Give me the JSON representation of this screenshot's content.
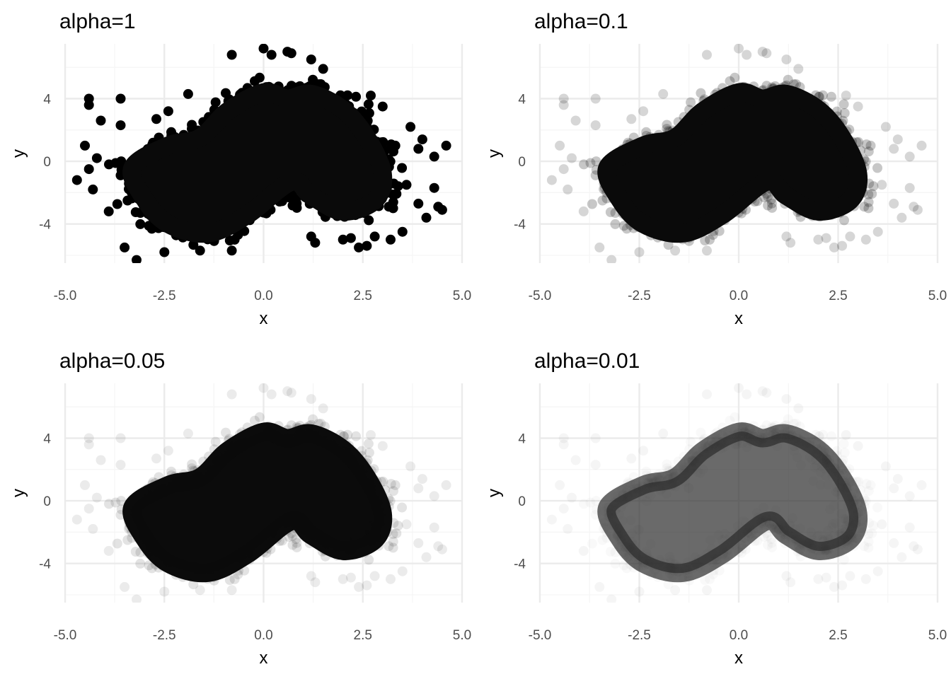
{
  "chart_data": [
    {
      "type": "scatter",
      "title": "alpha=1",
      "alpha": 1,
      "xlabel": "x",
      "ylabel": "y",
      "xlim": [
        -5,
        5
      ],
      "ylim": [
        -6.5,
        7.5
      ],
      "xticks": [
        -5,
        -2.5,
        0,
        2.5,
        5
      ],
      "xtick_labels": [
        "-5.0",
        "-2.5",
        "0.0",
        "2.5",
        "5.0"
      ],
      "yticks": [
        -4,
        0,
        4
      ],
      "ytick_labels": [
        "-4",
        "0",
        "4"
      ],
      "grid": true,
      "point_color": "#000000",
      "density_shape": [
        [
          -3.3,
          -0.4
        ],
        [
          -2.4,
          1.0
        ],
        [
          -1.6,
          1.5
        ],
        [
          -0.9,
          3.2
        ],
        [
          0.0,
          4.4
        ],
        [
          0.6,
          4.0
        ],
        [
          1.2,
          4.3
        ],
        [
          2.0,
          3.3
        ],
        [
          2.6,
          1.5
        ],
        [
          3.0,
          -0.8
        ],
        [
          2.8,
          -2.5
        ],
        [
          2.0,
          -3.2
        ],
        [
          1.2,
          -2.2
        ],
        [
          0.7,
          -1.3
        ],
        [
          -0.4,
          -3.4
        ],
        [
          -1.4,
          -4.6
        ],
        [
          -2.4,
          -4.0
        ],
        [
          -3.0,
          -2.4
        ]
      ],
      "outliers": [
        [
          -4.7,
          -1.2
        ],
        [
          -4.4,
          4.0
        ],
        [
          -4.4,
          3.6
        ],
        [
          -4.5,
          1.0
        ],
        [
          -4.4,
          -0.5
        ],
        [
          -4.3,
          -1.8
        ],
        [
          -4.1,
          2.6
        ],
        [
          -3.6,
          4.0
        ],
        [
          -3.5,
          -5.5
        ],
        [
          -3.2,
          -6.3
        ],
        [
          -2.5,
          -5.8
        ],
        [
          -2.4,
          3.2
        ],
        [
          -1.9,
          4.3
        ],
        [
          -1.6,
          -5.7
        ],
        [
          -0.8,
          6.8
        ],
        [
          -0.8,
          -5.7
        ],
        [
          0.0,
          7.2
        ],
        [
          0.2,
          6.8
        ],
        [
          0.6,
          7.0
        ],
        [
          0.7,
          6.9
        ],
        [
          1.2,
          6.5
        ],
        [
          1.5,
          5.9
        ],
        [
          1.2,
          -4.8
        ],
        [
          1.3,
          -5.2
        ],
        [
          2.0,
          -5.0
        ],
        [
          2.2,
          -4.9
        ],
        [
          2.4,
          -5.5
        ],
        [
          2.6,
          -5.4
        ],
        [
          2.8,
          -4.8
        ],
        [
          3.2,
          -5.0
        ],
        [
          3.0,
          3.5
        ],
        [
          3.5,
          -4.5
        ],
        [
          3.7,
          2.2
        ],
        [
          3.9,
          0.8
        ],
        [
          3.9,
          -2.7
        ],
        [
          4.1,
          -3.6
        ],
        [
          4.3,
          0.3
        ],
        [
          4.3,
          -1.7
        ],
        [
          4.4,
          -2.9
        ],
        [
          4.6,
          1.0
        ],
        [
          4.5,
          -3.1
        ],
        [
          3.6,
          -1.5
        ],
        [
          -3.9,
          -3.2
        ],
        [
          -3.6,
          2.3
        ],
        [
          -4.2,
          0.2
        ],
        [
          2.7,
          4.2
        ],
        [
          -2.7,
          2.7
        ],
        [
          4.0,
          1.4
        ]
      ]
    },
    {
      "type": "scatter",
      "title": "alpha=0.1",
      "alpha": 0.1,
      "xlabel": "x",
      "ylabel": "y",
      "xlim": [
        -5,
        5
      ],
      "ylim": [
        -6.5,
        7.5
      ],
      "xticks": [
        -5,
        -2.5,
        0,
        2.5,
        5
      ],
      "xtick_labels": [
        "-5.0",
        "-2.5",
        "0.0",
        "2.5",
        "5.0"
      ],
      "yticks": [
        -4,
        0,
        4
      ],
      "ytick_labels": [
        "-4",
        "0",
        "4"
      ],
      "grid": true,
      "point_color": "#000000",
      "density_shape": [
        [
          -3.3,
          -0.4
        ],
        [
          -2.4,
          1.0
        ],
        [
          -1.6,
          1.5
        ],
        [
          -0.9,
          3.2
        ],
        [
          0.0,
          4.4
        ],
        [
          0.6,
          4.0
        ],
        [
          1.2,
          4.3
        ],
        [
          2.0,
          3.3
        ],
        [
          2.6,
          1.5
        ],
        [
          3.0,
          -0.8
        ],
        [
          2.8,
          -2.5
        ],
        [
          2.0,
          -3.2
        ],
        [
          1.2,
          -2.2
        ],
        [
          0.7,
          -1.3
        ],
        [
          -0.4,
          -3.4
        ],
        [
          -1.4,
          -4.6
        ],
        [
          -2.4,
          -4.0
        ],
        [
          -3.0,
          -2.4
        ]
      ],
      "outliers": [
        [
          -4.7,
          -1.2
        ],
        [
          -4.4,
          4.0
        ],
        [
          -4.4,
          3.6
        ],
        [
          -4.5,
          1.0
        ],
        [
          -4.4,
          -0.5
        ],
        [
          -4.3,
          -1.8
        ],
        [
          -4.1,
          2.6
        ],
        [
          -3.6,
          4.0
        ],
        [
          -3.5,
          -5.5
        ],
        [
          -3.2,
          -6.3
        ],
        [
          -2.5,
          -5.8
        ],
        [
          -2.4,
          3.2
        ],
        [
          -1.9,
          4.3
        ],
        [
          -1.6,
          -5.7
        ],
        [
          -0.8,
          6.8
        ],
        [
          -0.8,
          -5.7
        ],
        [
          0.0,
          7.2
        ],
        [
          0.2,
          6.8
        ],
        [
          0.6,
          7.0
        ],
        [
          0.7,
          6.9
        ],
        [
          1.2,
          6.5
        ],
        [
          1.5,
          5.9
        ],
        [
          1.2,
          -4.8
        ],
        [
          1.3,
          -5.2
        ],
        [
          2.0,
          -5.0
        ],
        [
          2.2,
          -4.9
        ],
        [
          2.4,
          -5.5
        ],
        [
          2.6,
          -5.4
        ],
        [
          2.8,
          -4.8
        ],
        [
          3.2,
          -5.0
        ],
        [
          3.0,
          3.5
        ],
        [
          3.5,
          -4.5
        ],
        [
          3.7,
          2.2
        ],
        [
          3.9,
          0.8
        ],
        [
          3.9,
          -2.7
        ],
        [
          4.1,
          -3.6
        ],
        [
          4.3,
          0.3
        ],
        [
          4.3,
          -1.7
        ],
        [
          4.4,
          -2.9
        ],
        [
          4.6,
          1.0
        ],
        [
          4.5,
          -3.1
        ],
        [
          3.6,
          -1.5
        ],
        [
          -3.9,
          -3.2
        ],
        [
          -3.6,
          2.3
        ],
        [
          -4.2,
          0.2
        ],
        [
          2.7,
          4.2
        ],
        [
          -2.7,
          2.7
        ],
        [
          4.0,
          1.4
        ]
      ]
    },
    {
      "type": "scatter",
      "title": "alpha=0.05",
      "alpha": 0.05,
      "xlabel": "x",
      "ylabel": "y",
      "xlim": [
        -5,
        5
      ],
      "ylim": [
        -6.5,
        7.5
      ],
      "xticks": [
        -5,
        -2.5,
        0,
        2.5,
        5
      ],
      "xtick_labels": [
        "-5.0",
        "-2.5",
        "0.0",
        "2.5",
        "5.0"
      ],
      "yticks": [
        -4,
        0,
        4
      ],
      "ytick_labels": [
        "-4",
        "0",
        "4"
      ],
      "grid": true,
      "point_color": "#000000",
      "density_shape": [
        [
          -3.3,
          -0.4
        ],
        [
          -2.4,
          1.0
        ],
        [
          -1.6,
          1.5
        ],
        [
          -0.9,
          3.2
        ],
        [
          0.0,
          4.4
        ],
        [
          0.6,
          4.0
        ],
        [
          1.2,
          4.3
        ],
        [
          2.0,
          3.3
        ],
        [
          2.6,
          1.5
        ],
        [
          3.0,
          -0.8
        ],
        [
          2.8,
          -2.5
        ],
        [
          2.0,
          -3.2
        ],
        [
          1.2,
          -2.2
        ],
        [
          0.7,
          -1.3
        ],
        [
          -0.4,
          -3.4
        ],
        [
          -1.4,
          -4.6
        ],
        [
          -2.4,
          -4.0
        ],
        [
          -3.0,
          -2.4
        ]
      ],
      "outliers": [
        [
          -4.7,
          -1.2
        ],
        [
          -4.4,
          4.0
        ],
        [
          -4.4,
          3.6
        ],
        [
          -4.5,
          1.0
        ],
        [
          -4.4,
          -0.5
        ],
        [
          -4.3,
          -1.8
        ],
        [
          -4.1,
          2.6
        ],
        [
          -3.6,
          4.0
        ],
        [
          -3.5,
          -5.5
        ],
        [
          -3.2,
          -6.3
        ],
        [
          -2.5,
          -5.8
        ],
        [
          -2.4,
          3.2
        ],
        [
          -1.9,
          4.3
        ],
        [
          -1.6,
          -5.7
        ],
        [
          -0.8,
          6.8
        ],
        [
          -0.8,
          -5.7
        ],
        [
          0.0,
          7.2
        ],
        [
          0.2,
          6.8
        ],
        [
          0.6,
          7.0
        ],
        [
          0.7,
          6.9
        ],
        [
          1.2,
          6.5
        ],
        [
          1.5,
          5.9
        ],
        [
          1.2,
          -4.8
        ],
        [
          1.3,
          -5.2
        ],
        [
          2.0,
          -5.0
        ],
        [
          2.2,
          -4.9
        ],
        [
          2.4,
          -5.5
        ],
        [
          2.6,
          -5.4
        ],
        [
          2.8,
          -4.8
        ],
        [
          3.2,
          -5.0
        ],
        [
          3.0,
          3.5
        ],
        [
          3.5,
          -4.5
        ],
        [
          3.7,
          2.2
        ],
        [
          3.9,
          0.8
        ],
        [
          3.9,
          -2.7
        ],
        [
          4.1,
          -3.6
        ],
        [
          4.3,
          0.3
        ],
        [
          4.3,
          -1.7
        ],
        [
          4.4,
          -2.9
        ],
        [
          4.6,
          1.0
        ],
        [
          4.5,
          -3.1
        ],
        [
          3.6,
          -1.5
        ],
        [
          -3.9,
          -3.2
        ],
        [
          -3.6,
          2.3
        ],
        [
          -4.2,
          0.2
        ],
        [
          2.7,
          4.2
        ],
        [
          -2.7,
          2.7
        ],
        [
          4.0,
          1.4
        ]
      ]
    },
    {
      "type": "scatter",
      "title": "alpha=0.01",
      "alpha": 0.01,
      "xlabel": "x",
      "ylabel": "y",
      "xlim": [
        -5,
        5
      ],
      "ylim": [
        -6.5,
        7.5
      ],
      "xticks": [
        -5,
        -2.5,
        0,
        2.5,
        5
      ],
      "xtick_labels": [
        "-5.0",
        "-2.5",
        "0.0",
        "2.5",
        "5.0"
      ],
      "yticks": [
        -4,
        0,
        4
      ],
      "ytick_labels": [
        "-4",
        "0",
        "4"
      ],
      "grid": true,
      "point_color": "#000000",
      "density_shape": [
        [
          -3.3,
          -0.4
        ],
        [
          -2.4,
          1.0
        ],
        [
          -1.6,
          1.5
        ],
        [
          -0.9,
          3.2
        ],
        [
          0.0,
          4.4
        ],
        [
          0.6,
          4.0
        ],
        [
          1.2,
          4.3
        ],
        [
          2.0,
          3.3
        ],
        [
          2.6,
          1.5
        ],
        [
          3.0,
          -0.8
        ],
        [
          2.8,
          -2.5
        ],
        [
          2.0,
          -3.2
        ],
        [
          1.2,
          -2.2
        ],
        [
          0.7,
          -1.3
        ],
        [
          -0.4,
          -3.4
        ],
        [
          -1.4,
          -4.6
        ],
        [
          -2.4,
          -4.0
        ],
        [
          -3.0,
          -2.4
        ]
      ],
      "outliers": [
        [
          -4.7,
          -1.2
        ],
        [
          -4.4,
          4.0
        ],
        [
          -4.4,
          3.6
        ],
        [
          -4.5,
          1.0
        ],
        [
          -4.4,
          -0.5
        ],
        [
          -4.3,
          -1.8
        ],
        [
          -4.1,
          2.6
        ],
        [
          -3.6,
          4.0
        ],
        [
          -3.5,
          -5.5
        ],
        [
          -3.2,
          -6.3
        ],
        [
          -2.5,
          -5.8
        ],
        [
          -2.4,
          3.2
        ],
        [
          -1.9,
          4.3
        ],
        [
          -1.6,
          -5.7
        ],
        [
          -0.8,
          6.8
        ],
        [
          -0.8,
          -5.7
        ],
        [
          0.0,
          7.2
        ],
        [
          0.2,
          6.8
        ],
        [
          0.6,
          7.0
        ],
        [
          0.7,
          6.9
        ],
        [
          1.2,
          6.5
        ],
        [
          1.5,
          5.9
        ],
        [
          1.2,
          -4.8
        ],
        [
          1.3,
          -5.2
        ],
        [
          2.0,
          -5.0
        ],
        [
          2.2,
          -4.9
        ],
        [
          2.4,
          -5.5
        ],
        [
          2.6,
          -5.4
        ],
        [
          2.8,
          -4.8
        ],
        [
          3.2,
          -5.0
        ],
        [
          3.0,
          3.5
        ],
        [
          3.5,
          -4.5
        ],
        [
          3.7,
          2.2
        ],
        [
          3.9,
          0.8
        ],
        [
          3.9,
          -2.7
        ],
        [
          4.1,
          -3.6
        ],
        [
          4.3,
          0.3
        ],
        [
          4.3,
          -1.7
        ],
        [
          4.4,
          -2.9
        ],
        [
          4.6,
          1.0
        ],
        [
          4.5,
          -3.1
        ],
        [
          3.6,
          -1.5
        ],
        [
          -3.9,
          -3.2
        ],
        [
          -3.6,
          2.3
        ],
        [
          -4.2,
          0.2
        ],
        [
          2.7,
          4.2
        ],
        [
          -2.7,
          2.7
        ],
        [
          4.0,
          1.4
        ]
      ]
    }
  ],
  "theme": {
    "grid_major_color": "#ebebeb",
    "grid_minor_color": "#f5f5f5",
    "tick_text_color": "#4d4d4d"
  }
}
